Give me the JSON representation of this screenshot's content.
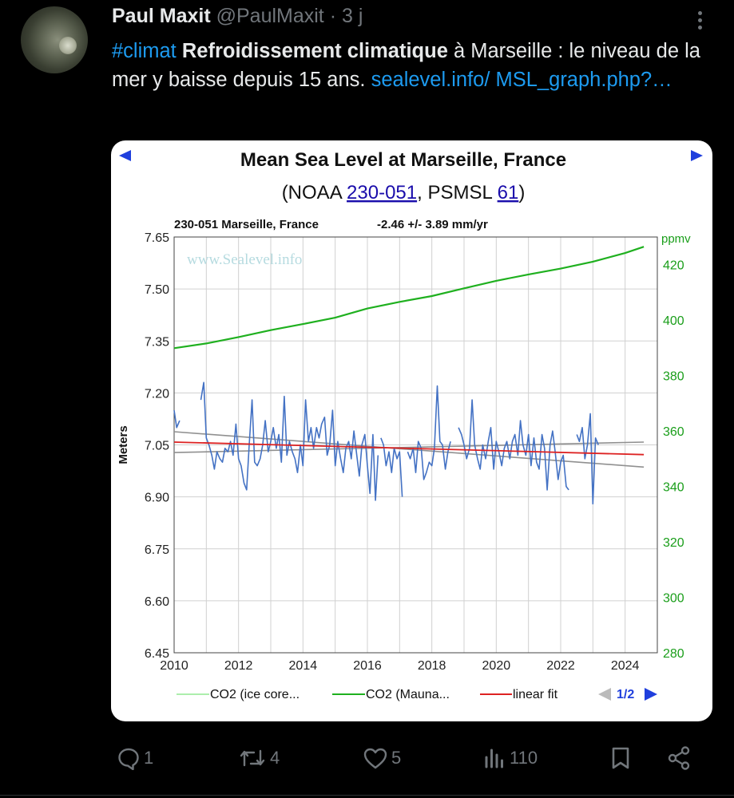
{
  "tweet": {
    "author_name": "Paul Maxit",
    "author_handle": "@PaulMaxit",
    "separator": " · ",
    "time": "3 j",
    "hashtag": "#climat",
    "bold_text": "Refroidissement climatique",
    "text_part1": " à Marseille : le niveau de la mer y baisse depuis 15 ans. ",
    "link_text": "sealevel.info/ MSL_graph.php?…"
  },
  "chart_card": {
    "title": "Mean Sea Level at Marseille, France",
    "subtitle_prefix": "(NOAA ",
    "noaa_link": "230-051",
    "subtitle_mid": ", PSMSL ",
    "psmsl_link": "61",
    "subtitle_suffix": ")",
    "station_label": "230-051 Marseille, France",
    "trend_label": "-2.46 +/- 3.89 mm/yr",
    "watermark": "www.Sealevel.info",
    "nav_prev_icon": "triangle-left-icon",
    "nav_next_icon": "triangle-right-icon",
    "legend_page": "1/2",
    "colors": {
      "sea_level": "#4472c4",
      "co2_mauna": "#1fb01f",
      "co2_ice": "#90e890",
      "linear_fit": "#dd2222",
      "confidence": "#909090",
      "nav_blue": "#1f3fdd",
      "right_axis": "#1a9e1a"
    }
  },
  "chart_data": {
    "type": "line",
    "title": "Mean Sea Level at Marseille, France",
    "xlabel": "",
    "ylabel": "Meters",
    "y2label": "ppmv",
    "xlim": [
      2010,
      2025
    ],
    "ylim": [
      6.45,
      7.65
    ],
    "y2lim": [
      280,
      430
    ],
    "x_ticks": [
      2010,
      2012,
      2014,
      2016,
      2018,
      2020,
      2022,
      2024
    ],
    "y_ticks": [
      6.45,
      6.6,
      6.75,
      6.9,
      7.05,
      7.2,
      7.35,
      7.5,
      7.65
    ],
    "y2_ticks": [
      280,
      300,
      320,
      340,
      360,
      380,
      400,
      420
    ],
    "grid": true,
    "legend": [
      "CO2 (ice core...",
      "CO2 (Mauna...",
      "linear fit"
    ],
    "series": [
      {
        "name": "monthly MSL",
        "segments": [
          {
            "x": [
              2010.0,
              2010.08,
              2010.17
            ],
            "y": [
              7.15,
              7.1,
              7.12
            ]
          },
          {
            "x": [
              2010.83,
              2010.92,
              2011.0,
              2011.08,
              2011.17,
              2011.25,
              2011.33,
              2011.42,
              2011.5,
              2011.58,
              2011.67,
              2011.75,
              2011.83,
              2011.92,
              2012.0,
              2012.08,
              2012.17,
              2012.25,
              2012.33,
              2012.42,
              2012.5,
              2012.58,
              2012.67,
              2012.75,
              2012.83,
              2012.92,
              2013.0,
              2013.08,
              2013.17,
              2013.25,
              2013.33,
              2013.42,
              2013.5,
              2013.58,
              2013.67,
              2013.75,
              2013.83,
              2013.92,
              2014.0,
              2014.08,
              2014.17,
              2014.25,
              2014.33,
              2014.42,
              2014.5,
              2014.58,
              2014.67,
              2014.75,
              2014.83,
              2014.92,
              2015.0,
              2015.08,
              2015.17,
              2015.25,
              2015.33,
              2015.42,
              2015.5,
              2015.58,
              2015.67,
              2015.75,
              2015.83,
              2015.92,
              2016.0,
              2016.08,
              2016.17,
              2016.25,
              2016.33
            ],
            "y": [
              7.18,
              7.23,
              7.07,
              7.05,
              7.02,
              6.98,
              7.03,
              7.01,
              7.0,
              7.04,
              7.03,
              7.06,
              7.02,
              7.11,
              7.01,
              6.99,
              6.94,
              6.92,
              7.05,
              7.18,
              7.0,
              6.99,
              7.01,
              7.05,
              7.12,
              7.03,
              7.06,
              7.1,
              7.04,
              7.08,
              7.0,
              7.19,
              7.02,
              7.06,
              7.03,
              7.01,
              6.97,
              7.05,
              6.99,
              7.18,
              7.06,
              7.1,
              7.04,
              7.1,
              7.07,
              7.11,
              7.13,
              7.02,
              7.05,
              7.15,
              6.99,
              7.06,
              7.01,
              6.97,
              7.04,
              7.06,
              7.01,
              7.09,
              7.02,
              6.96,
              7.05,
              7.08,
              6.99,
              6.91,
              7.08,
              6.89,
              7.02
            ]
          },
          {
            "x": [
              2016.42,
              2016.5,
              2016.58,
              2016.67,
              2016.75,
              2016.83,
              2016.92,
              2017.0,
              2017.08
            ],
            "y": [
              7.07,
              7.05,
              6.99,
              7.03,
              6.97,
              7.04,
              7.01,
              7.03,
              6.9
            ]
          },
          {
            "x": [
              2017.25,
              2017.33,
              2017.42,
              2017.5,
              2017.58,
              2017.67,
              2017.75,
              2017.83,
              2017.92,
              2018.0,
              2018.08
            ],
            "y": [
              7.03,
              7.01,
              7.04,
              6.97,
              7.06,
              7.04,
              6.95,
              6.97,
              7.0,
              6.99,
              7.04
            ]
          },
          {
            "x": [
              2018.08,
              2018.17,
              2018.25,
              2018.33,
              2018.42,
              2018.5,
              2018.58
            ],
            "y": [
              7.04,
              7.22,
              7.06,
              7.05,
              6.98,
              7.03,
              7.06
            ]
          },
          {
            "x": [
              2018.83,
              2018.92,
              2019.0,
              2019.08,
              2019.17,
              2019.25,
              2019.33,
              2019.42,
              2019.5,
              2019.58,
              2019.67,
              2019.75,
              2019.83,
              2019.92,
              2020.0,
              2020.08,
              2020.17,
              2020.25,
              2020.33,
              2020.42,
              2020.5,
              2020.58,
              2020.67,
              2020.75,
              2020.83,
              2020.92,
              2021.0,
              2021.08,
              2021.17,
              2021.25,
              2021.33,
              2021.42,
              2021.5,
              2021.58,
              2021.67,
              2021.75,
              2021.83,
              2021.92,
              2022.0,
              2022.08,
              2022.17,
              2022.25
            ],
            "y": [
              7.1,
              7.08,
              7.05,
              7.01,
              7.04,
              7.18,
              7.05,
              7.01,
              6.98,
              7.05,
              7.01,
              7.06,
              7.1,
              6.98,
              7.06,
              7.03,
              6.99,
              7.04,
              7.06,
              7.01,
              7.06,
              7.08,
              7.02,
              7.12,
              7.05,
              7.02,
              7.08,
              6.99,
              7.07,
              7.0,
              6.98,
              7.08,
              7.04,
              6.92,
              7.05,
              7.09,
              7.03,
              6.95,
              7.0,
              7.02,
              6.93,
              6.92
            ]
          },
          {
            "x": [
              2022.5,
              2022.58,
              2022.67,
              2022.75,
              2022.83,
              2022.92,
              2023.0,
              2023.08,
              2023.17
            ],
            "y": [
              7.08,
              7.06,
              7.1,
              7.01,
              7.05,
              7.14,
              6.88,
              7.07,
              7.05
            ]
          }
        ]
      },
      {
        "name": "CO2 (Mauna...",
        "x": [
          2010.0,
          2011.0,
          2012.0,
          2013.0,
          2014.0,
          2015.0,
          2016.0,
          2017.0,
          2018.0,
          2019.0,
          2020.0,
          2021.0,
          2022.0,
          2023.0,
          2024.0,
          2024.58
        ],
        "y": [
          389.9,
          391.6,
          393.9,
          396.4,
          398.6,
          400.9,
          404.2,
          406.6,
          408.7,
          411.5,
          414.2,
          416.5,
          418.6,
          421.1,
          424.2,
          426.5
        ]
      },
      {
        "name": "linear fit",
        "x": [
          2010.0,
          2024.58
        ],
        "y": [
          7.058,
          7.022
        ]
      },
      {
        "name": "upper confidence",
        "x": [
          2010.0,
          2024.58
        ],
        "y": [
          7.028,
          7.058
        ]
      },
      {
        "name": "lower confidence",
        "x": [
          2010.0,
          2024.58
        ],
        "y": [
          7.088,
          6.986
        ]
      }
    ]
  },
  "actions": {
    "replies": "1",
    "retweets": "4",
    "likes": "5",
    "views": "110",
    "reply_icon": "comment-icon",
    "retweet_icon": "retweet-icon",
    "like_icon": "heart-icon",
    "views_icon": "bar-chart-icon",
    "bookmark_icon": "bookmark-icon",
    "share_icon": "share-icon"
  }
}
